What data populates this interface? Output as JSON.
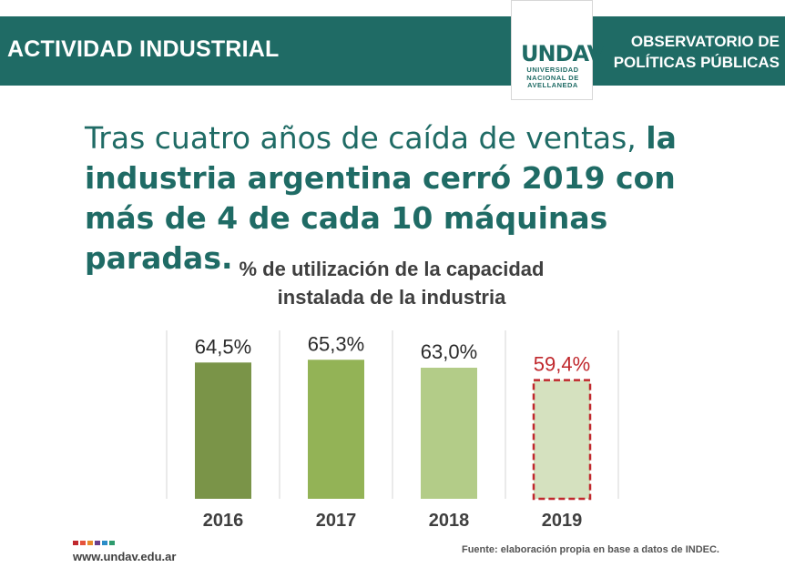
{
  "header": {
    "title": "ACTIVIDAD INDUSTRIAL",
    "org_line1": "OBSERVATORIO DE",
    "org_line2": "POLÍTICAS PÚBLICAS",
    "logo_mark": "UNDAV",
    "logo_line1": "UNIVERSIDAD",
    "logo_line2": "NACIONAL DE",
    "logo_line3": "AVELLANEDA"
  },
  "headline": {
    "plain": "Tras cuatro años de caída de ventas, ",
    "bold": "la industria argentina cerró 2019 con más de 4 de cada 10 máquinas paradas."
  },
  "chart_data": {
    "type": "bar",
    "title_line1": "% de utilización de la capacidad",
    "title_line2": "instalada de la industria",
    "categories": [
      "2016",
      "2017",
      "2018",
      "2019"
    ],
    "values": [
      64.5,
      65.3,
      63.0,
      59.4
    ],
    "data_labels": [
      "64,5%",
      "65,3%",
      "63,0%",
      "59,4%"
    ],
    "bar_colors": [
      "#7a9448",
      "#93b356",
      "#b3cc88",
      "#d5e1bf"
    ],
    "highlight": {
      "category": "2019",
      "label_color": "#c0282d",
      "border_color": "#c0282d",
      "border_style": "dashed"
    },
    "ylim": [
      0,
      66
    ],
    "grid": true
  },
  "footer": {
    "url": "www.undav.edu.ar",
    "source": "Fuente: elaboración propia en base a datos de INDEC.",
    "dot_colors": [
      "#c0282d",
      "#e5533c",
      "#e88a2b",
      "#6a3e8c",
      "#2a8cc7",
      "#2e9b6e"
    ]
  },
  "colors": {
    "brand": "#1f6b65",
    "text_dark": "#3f3f3f"
  }
}
